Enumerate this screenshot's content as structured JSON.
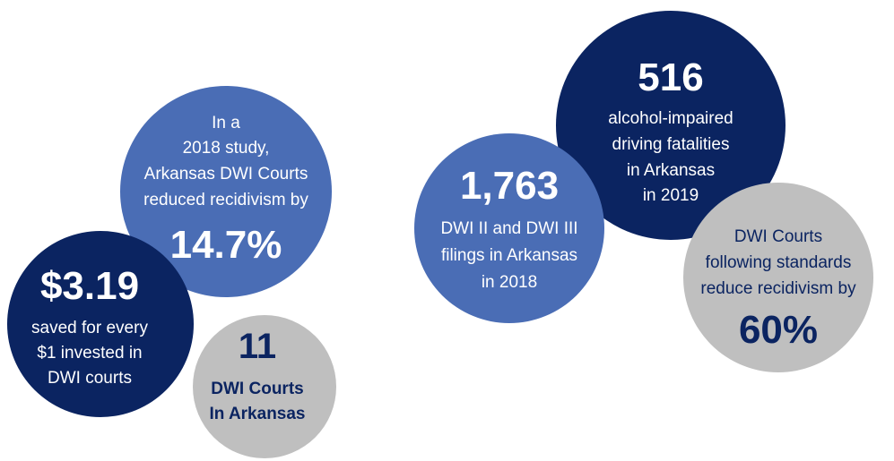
{
  "circles": [
    {
      "text": [
        "In a",
        "2018 study,",
        "Arkansas DWI Courts",
        "reduced recidivism by"
      ],
      "figure": "14.7%"
    },
    {
      "figure": "$3.19",
      "text": [
        "saved for every",
        "$1 invested in",
        "DWI courts"
      ]
    },
    {
      "figure": "11",
      "text": [
        "DWI Courts",
        "In Arkansas"
      ]
    },
    {
      "figure": "516",
      "text": [
        "alcohol-impaired",
        "driving fatalities",
        "in Arkansas",
        "in 2019"
      ]
    },
    {
      "figure": "1,763",
      "text": [
        "DWI II and DWI III",
        "filings in Arkansas",
        "in 2018"
      ]
    },
    {
      "text": [
        "DWI Courts",
        "following standards",
        "reduce recidivism by"
      ],
      "figure": "60%"
    }
  ]
}
